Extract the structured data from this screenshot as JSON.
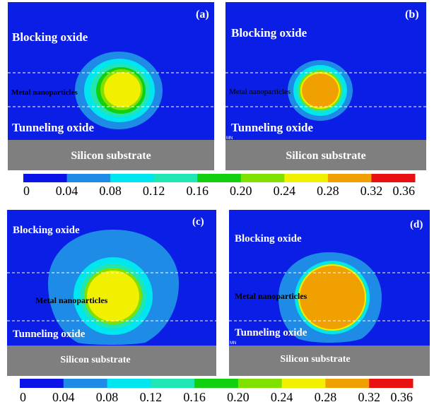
{
  "figure": {
    "colors": {
      "oxide_background": "#0a1ee6",
      "substrate": "#7f7f7f",
      "white_text": "#ffffff",
      "black_text": "#000000"
    },
    "panels": [
      {
        "id": "a",
        "label": "(a)",
        "regions": {
          "blocking_oxide": "Blocking oxide",
          "metal_nanoparticles": "Metal nanoparticles",
          "tunneling_oxide": "Tunneling oxide",
          "silicon_substrate": "Silicon substrate"
        },
        "core_level": 0.28,
        "contour_levels": [
          0.04,
          0.08,
          0.12,
          0.16,
          0.2,
          0.24
        ]
      },
      {
        "id": "b",
        "label": "(b)",
        "regions": {
          "blocking_oxide": "Blocking oxide",
          "metal_nanoparticles": "Metal nanoparticles",
          "tunneling_oxide": "Tunneling oxide",
          "silicon_substrate": "Silicon substrate"
        },
        "mark": "MN",
        "core_level": 0.32,
        "contour_levels": [
          0.04,
          0.08,
          0.12,
          0.16,
          0.2,
          0.24,
          0.28
        ]
      },
      {
        "id": "c",
        "label": "(c)",
        "regions": {
          "blocking_oxide": "Blocking oxide",
          "metal_nanoparticles": "Metal nanoparticles",
          "tunneling_oxide": "Tunneling oxide",
          "silicon_substrate": "Silicon substrate"
        },
        "core_level": 0.28,
        "contour_levels": [
          0.04,
          0.08,
          0.12,
          0.16,
          0.2,
          0.24
        ]
      },
      {
        "id": "d",
        "label": "(d)",
        "regions": {
          "blocking_oxide": "Blocking oxide",
          "metal_nanoparticles": "Metal nanoparticles",
          "tunneling_oxide": "Tunneling oxide",
          "silicon_substrate": "Silicon substrate"
        },
        "mark": "MN",
        "core_level": 0.32,
        "contour_levels": [
          0.04,
          0.08,
          0.12,
          0.16,
          0.2,
          0.24,
          0.28
        ]
      }
    ],
    "colorbar": {
      "colors": [
        "#0a14e6",
        "#1e8ce6",
        "#00e6f0",
        "#20e6b4",
        "#10d010",
        "#80e000",
        "#f0f000",
        "#f0a000",
        "#e81010"
      ],
      "tick_labels": [
        "0",
        "0.04",
        "0.08",
        "0.12",
        "0.16",
        "0.20",
        "0.24",
        "0.28",
        "0.32",
        "0.36"
      ]
    }
  }
}
